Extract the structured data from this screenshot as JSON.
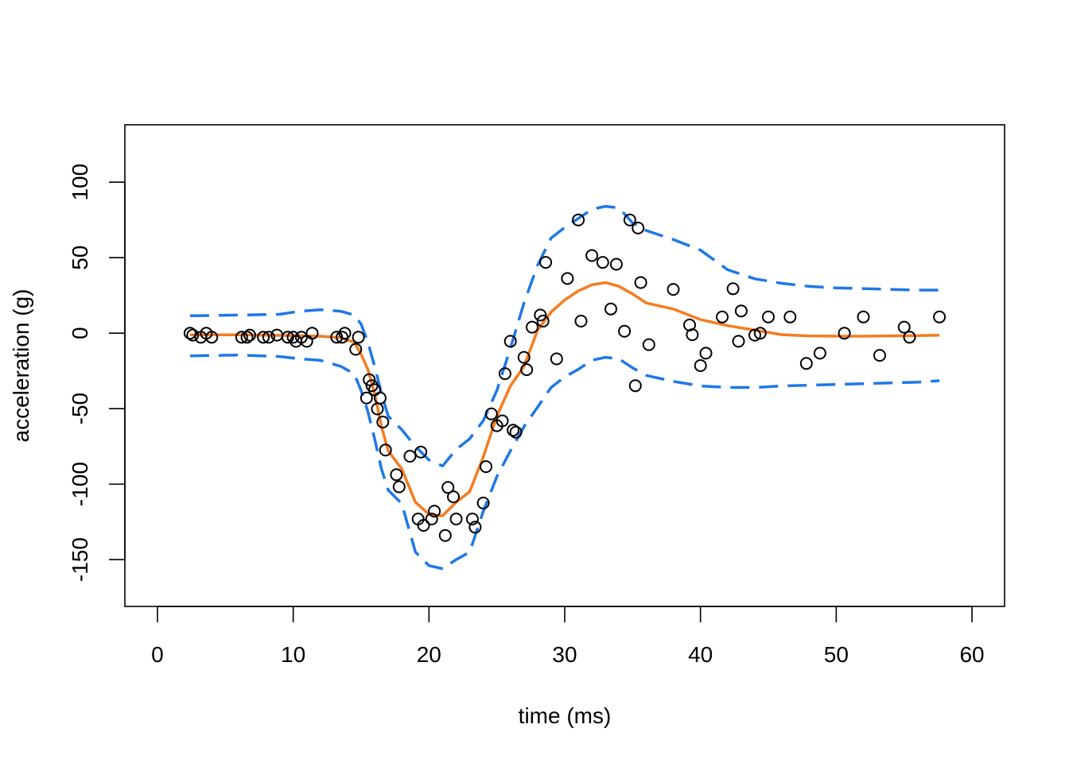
{
  "chart_data": {
    "type": "scatter",
    "title": "",
    "xlabel": "time (ms)",
    "ylabel": "acceleration (g)",
    "xlim": [
      -2.4,
      62.4
    ],
    "ylim": [
      -181,
      138
    ],
    "x_ticks": [
      0,
      10,
      20,
      30,
      40,
      50,
      60
    ],
    "y_ticks": [
      -150,
      -100,
      -50,
      0,
      50,
      100
    ],
    "colors": {
      "points": "#000000",
      "fit": "#F57C1F",
      "band": "#1E78E8"
    },
    "points": {
      "x": [
        2.4,
        2.6,
        3.2,
        3.6,
        4.0,
        6.2,
        6.6,
        6.8,
        7.8,
        8.2,
        8.8,
        9.6,
        10.0,
        10.2,
        10.6,
        11.0,
        11.4,
        13.2,
        13.6,
        13.8,
        14.6,
        14.8,
        15.4,
        15.6,
        15.8,
        16.0,
        16.2,
        16.4,
        16.6,
        16.8,
        17.6,
        17.8,
        18.6,
        19.2,
        19.4,
        19.6,
        20.2,
        20.4,
        21.2,
        21.4,
        21.8,
        22.0,
        23.2,
        23.4,
        24.0,
        24.2,
        24.6,
        25.0,
        25.4,
        25.6,
        26.0,
        26.2,
        26.4,
        27.0,
        27.2,
        27.6,
        28.2,
        28.4,
        28.6,
        29.4,
        30.2,
        31.0,
        31.2,
        32.0,
        32.8,
        33.4,
        33.8,
        34.4,
        34.8,
        35.2,
        35.4,
        35.6,
        36.2,
        38.0,
        39.2,
        39.4,
        40.0,
        40.4,
        41.6,
        42.4,
        42.8,
        43.0,
        44.0,
        44.4,
        45.0,
        46.6,
        47.8,
        48.8,
        50.6,
        52.0,
        53.2,
        55.0,
        55.4,
        57.6
      ],
      "y": [
        0.0,
        -1.3,
        -2.7,
        0.0,
        -2.7,
        -2.7,
        -2.7,
        -1.3,
        -2.7,
        -2.7,
        -1.3,
        -2.7,
        -2.7,
        -5.4,
        -2.7,
        -5.4,
        0.0,
        -2.7,
        -2.7,
        0.0,
        -10.7,
        -2.7,
        -42.9,
        -30.8,
        -34.8,
        -37.5,
        -50.2,
        -42.9,
        -58.9,
        -77.4,
        -93.8,
        -101.8,
        -81.5,
        -123.1,
        -78.7,
        -127.3,
        -123.1,
        -117.9,
        -134.0,
        -102.2,
        -108.4,
        -123.1,
        -123.1,
        -128.5,
        -112.5,
        -88.4,
        -53.5,
        -61.3,
        -58.1,
        -26.8,
        -5.4,
        -64.3,
        -65.6,
        -16.0,
        -24.2,
        4.0,
        12.0,
        8.0,
        46.9,
        -17.0,
        36.2,
        75.0,
        8.0,
        51.4,
        46.9,
        16.0,
        45.6,
        1.3,
        75.0,
        -34.8,
        69.6,
        33.5,
        -7.6,
        29.0,
        5.4,
        -1.0,
        -21.5,
        -13.3,
        10.7,
        29.4,
        -5.4,
        14.7,
        -1.3,
        0.0,
        10.7,
        10.7,
        -20.1,
        -13.3,
        0.0,
        10.7,
        -14.7,
        4.0,
        -2.7,
        10.7
      ]
    },
    "series": [
      {
        "name": "fit",
        "style": "solid",
        "x": [
          2.4,
          6,
          10,
          12,
          13.5,
          14.5,
          15,
          15.5,
          16,
          16.5,
          17,
          18,
          19,
          20,
          21,
          22,
          23,
          24,
          25,
          26,
          27,
          28,
          29,
          30,
          31,
          32,
          33,
          34,
          35,
          36,
          38,
          40,
          42,
          44,
          46,
          48,
          50,
          52,
          54,
          56,
          57.6
        ],
        "y": [
          -1.2,
          -1.1,
          -1.6,
          -2,
          -3,
          -6,
          -14,
          -24,
          -40,
          -62,
          -78,
          -90,
          -112,
          -120,
          -121,
          -112,
          -105,
          -82,
          -55,
          -35,
          -22,
          2,
          14,
          22,
          28,
          32,
          33.5,
          31,
          26,
          20,
          16,
          9,
          5,
          2,
          -1,
          -1.8,
          -2,
          -2,
          -1.8,
          -1.6,
          -1.4
        ]
      },
      {
        "name": "upper band",
        "style": "dashed",
        "x": [
          2.4,
          6,
          9,
          10.5,
          12,
          13.5,
          14.5,
          15,
          15.5,
          16,
          16.5,
          17,
          18,
          19,
          20,
          21,
          22,
          23,
          24,
          25,
          26,
          27,
          28,
          29,
          30,
          31,
          32,
          33,
          34,
          35,
          36,
          38,
          40,
          42,
          44,
          46,
          48,
          50,
          52,
          54,
          56,
          57.6
        ],
        "y": [
          11.5,
          12,
          12.5,
          14.5,
          15.5,
          14.5,
          12,
          6,
          -6,
          -22,
          -40,
          -55,
          -64,
          -75,
          -84,
          -88,
          -77,
          -70,
          -58,
          -38,
          -10,
          20,
          45,
          63,
          70,
          76,
          82,
          84,
          83,
          73,
          68,
          62,
          55,
          42,
          36,
          33,
          31,
          30,
          29.5,
          29,
          28.5,
          28.5
        ]
      },
      {
        "name": "lower band",
        "style": "dashed",
        "x": [
          2.4,
          6,
          9,
          10.5,
          12,
          13.5,
          14.5,
          15,
          15.5,
          16,
          16.5,
          17,
          18,
          19,
          20,
          21,
          22,
          23,
          24,
          25,
          26,
          27,
          28,
          29,
          30,
          31,
          32,
          33,
          34,
          35,
          36,
          38,
          40,
          42,
          44,
          46,
          48,
          50,
          52,
          54,
          56,
          57.6
        ],
        "y": [
          -15,
          -14.5,
          -15.5,
          -17,
          -18,
          -22,
          -27,
          -38,
          -52,
          -70,
          -90,
          -104,
          -113,
          -145,
          -154,
          -156,
          -150,
          -145,
          -118,
          -95,
          -78,
          -62,
          -49,
          -36,
          -29,
          -24,
          -18,
          -16,
          -17,
          -23,
          -28,
          -32,
          -35,
          -36,
          -36,
          -35,
          -34.5,
          -34,
          -33.5,
          -33,
          -32.5,
          -31.5
        ]
      }
    ]
  }
}
